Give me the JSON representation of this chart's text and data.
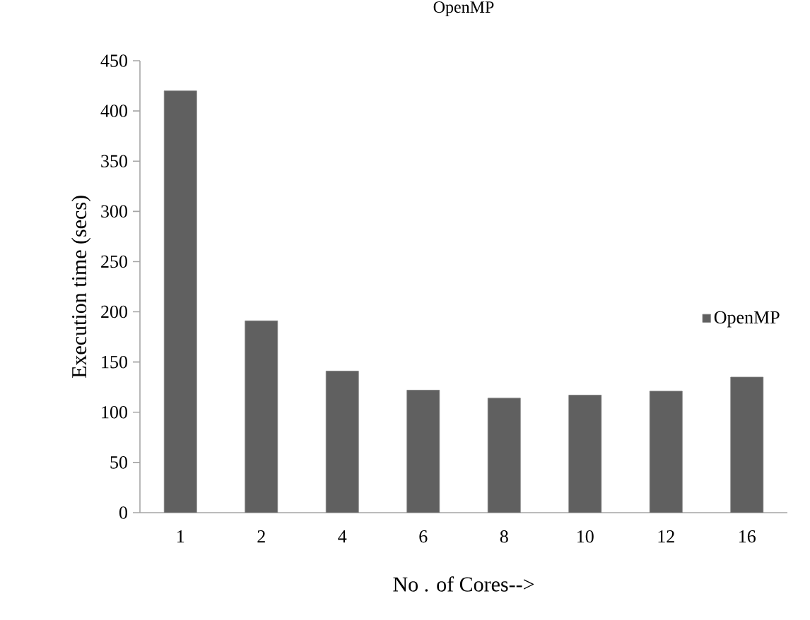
{
  "chart_data": {
    "type": "bar",
    "title": "OpenMP",
    "xlabel": "No . of Cores-->",
    "ylabel": "Execution time (secs)",
    "categories": [
      "1",
      "2",
      "4",
      "6",
      "8",
      "10",
      "12",
      "16"
    ],
    "series": [
      {
        "name": "OpenMP",
        "color": "#606060",
        "values": [
          420,
          191,
          141,
          122,
          114,
          117,
          121,
          135
        ]
      }
    ],
    "ylim": [
      0,
      450
    ],
    "yticks": [
      0,
      50,
      100,
      150,
      200,
      250,
      300,
      350,
      400,
      450
    ],
    "grid": false,
    "legend": "right"
  }
}
